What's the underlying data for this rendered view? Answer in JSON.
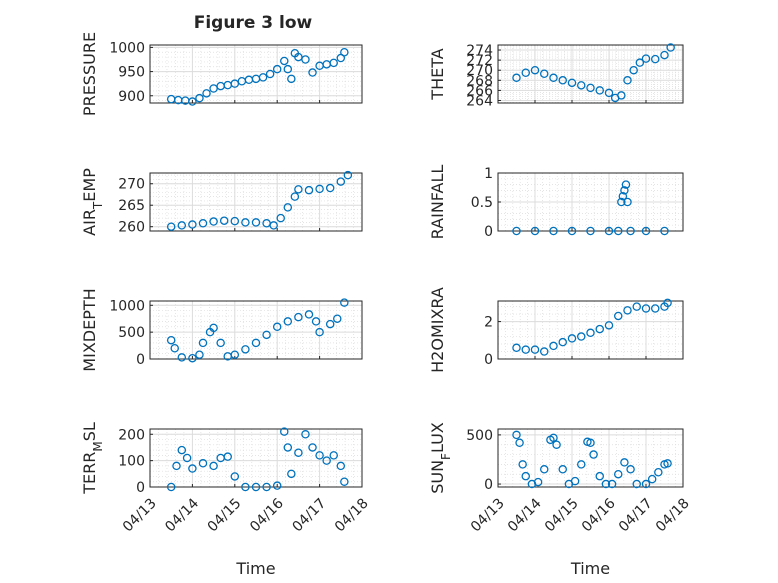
{
  "figure": {
    "title": "Figure 3 low"
  },
  "colors": {
    "marker": "#0072BD",
    "grid": "#dcdcdc",
    "axis": "#262626"
  },
  "chart_data": [
    {
      "type": "scatter",
      "marker": "circle",
      "ylabel": "PRESSURE",
      "xlim": [
        "04/13",
        "04/18"
      ],
      "ylim": [
        885,
        1005
      ],
      "yticks": [
        900,
        950,
        1000
      ],
      "points": [
        [
          "04/13 12:00",
          893
        ],
        [
          "04/13 16:00",
          891
        ],
        [
          "04/13 20:00",
          890
        ],
        [
          "04/14 00:00",
          888
        ],
        [
          "04/14 04:00",
          895
        ],
        [
          "04/14 08:00",
          905
        ],
        [
          "04/14 12:00",
          915
        ],
        [
          "04/14 16:00",
          920
        ],
        [
          "04/14 20:00",
          922
        ],
        [
          "04/15 00:00",
          925
        ],
        [
          "04/15 04:00",
          930
        ],
        [
          "04/15 08:00",
          933
        ],
        [
          "04/15 12:00",
          935
        ],
        [
          "04/15 16:00",
          938
        ],
        [
          "04/15 20:00",
          945
        ],
        [
          "04/16 00:00",
          955
        ],
        [
          "04/16 04:00",
          972
        ],
        [
          "04/16 06:00",
          955
        ],
        [
          "04/16 08:00",
          935
        ],
        [
          "04/16 10:00",
          988
        ],
        [
          "04/16 12:00",
          980
        ],
        [
          "04/16 16:00",
          975
        ],
        [
          "04/16 20:00",
          948
        ],
        [
          "04/17 00:00",
          962
        ],
        [
          "04/17 04:00",
          965
        ],
        [
          "04/17 08:00",
          968
        ],
        [
          "04/17 12:00",
          978
        ],
        [
          "04/17 14:00",
          990
        ]
      ]
    },
    {
      "type": "scatter",
      "marker": "circle",
      "ylabel": "THETA",
      "xlim": [
        "04/13",
        "04/18"
      ],
      "ylim": [
        263.5,
        275
      ],
      "yticks": [
        264,
        266,
        268,
        270,
        272,
        274
      ],
      "points": [
        [
          "04/13 12:00",
          268.5
        ],
        [
          "04/13 18:00",
          269.5
        ],
        [
          "04/14 00:00",
          270.0
        ],
        [
          "04/14 06:00",
          269.3
        ],
        [
          "04/14 12:00",
          268.5
        ],
        [
          "04/14 18:00",
          268.0
        ],
        [
          "04/15 00:00",
          267.5
        ],
        [
          "04/15 06:00",
          267.0
        ],
        [
          "04/15 12:00",
          266.5
        ],
        [
          "04/15 18:00",
          266.0
        ],
        [
          "04/16 00:00",
          265.5
        ],
        [
          "04/16 04:00",
          264.5
        ],
        [
          "04/16 08:00",
          265.0
        ],
        [
          "04/16 12:00",
          268.0
        ],
        [
          "04/16 16:00",
          270.0
        ],
        [
          "04/16 20:00",
          271.5
        ],
        [
          "04/17 00:00",
          272.3
        ],
        [
          "04/17 06:00",
          272.2
        ],
        [
          "04/17 12:00",
          273.0
        ],
        [
          "04/17 16:00",
          274.5
        ]
      ]
    },
    {
      "type": "scatter",
      "marker": "circle",
      "ylabel": "AIR_TEMP",
      "xlim": [
        "04/13",
        "04/18"
      ],
      "ylim": [
        259,
        272.5
      ],
      "yticks": [
        260,
        265,
        270
      ],
      "points": [
        [
          "04/13 12:00",
          260.0
        ],
        [
          "04/13 18:00",
          260.3
        ],
        [
          "04/14 00:00",
          260.5
        ],
        [
          "04/14 06:00",
          260.8
        ],
        [
          "04/14 12:00",
          261.2
        ],
        [
          "04/14 18:00",
          261.4
        ],
        [
          "04/15 00:00",
          261.3
        ],
        [
          "04/15 06:00",
          261.0
        ],
        [
          "04/15 12:00",
          261.0
        ],
        [
          "04/15 18:00",
          260.8
        ],
        [
          "04/15 22:00",
          260.3
        ],
        [
          "04/16 02:00",
          262.0
        ],
        [
          "04/16 06:00",
          264.5
        ],
        [
          "04/16 10:00",
          267.0
        ],
        [
          "04/16 12:00",
          268.7
        ],
        [
          "04/16 18:00",
          268.5
        ],
        [
          "04/17 00:00",
          268.8
        ],
        [
          "04/17 06:00",
          269.0
        ],
        [
          "04/17 12:00",
          270.5
        ],
        [
          "04/17 16:00",
          272.0
        ]
      ]
    },
    {
      "type": "scatter",
      "marker": "circle",
      "ylabel": "RAINFALL",
      "xlim": [
        "04/13",
        "04/18"
      ],
      "ylim": [
        0,
        1
      ],
      "yticks": [
        0,
        0.5,
        1
      ],
      "points": [
        [
          "04/13 12:00",
          0
        ],
        [
          "04/14 00:00",
          0
        ],
        [
          "04/14 12:00",
          0
        ],
        [
          "04/15 00:00",
          0
        ],
        [
          "04/15 12:00",
          0
        ],
        [
          "04/16 00:00",
          0
        ],
        [
          "04/16 06:00",
          0
        ],
        [
          "04/16 08:00",
          0.5
        ],
        [
          "04/16 09:00",
          0.6
        ],
        [
          "04/16 10:00",
          0.7
        ],
        [
          "04/16 11:00",
          0.8
        ],
        [
          "04/16 12:00",
          0.5
        ],
        [
          "04/16 14:00",
          0
        ],
        [
          "04/17 00:00",
          0
        ],
        [
          "04/17 12:00",
          0
        ]
      ]
    },
    {
      "type": "scatter",
      "marker": "circle",
      "ylabel": "MIXDEPTH",
      "xlim": [
        "04/13",
        "04/18"
      ],
      "ylim": [
        0,
        1080
      ],
      "yticks": [
        0,
        500,
        1000
      ],
      "points": [
        [
          "04/13 12:00",
          350
        ],
        [
          "04/13 14:00",
          200
        ],
        [
          "04/13 18:00",
          30
        ],
        [
          "04/14 00:00",
          15
        ],
        [
          "04/14 04:00",
          80
        ],
        [
          "04/14 06:00",
          300
        ],
        [
          "04/14 10:00",
          500
        ],
        [
          "04/14 12:00",
          580
        ],
        [
          "04/14 16:00",
          300
        ],
        [
          "04/14 20:00",
          50
        ],
        [
          "04/15 00:00",
          80
        ],
        [
          "04/15 06:00",
          180
        ],
        [
          "04/15 12:00",
          300
        ],
        [
          "04/15 18:00",
          450
        ],
        [
          "04/16 00:00",
          600
        ],
        [
          "04/16 06:00",
          700
        ],
        [
          "04/16 12:00",
          780
        ],
        [
          "04/16 18:00",
          830
        ],
        [
          "04/16 22:00",
          700
        ],
        [
          "04/17 00:00",
          500
        ],
        [
          "04/17 06:00",
          650
        ],
        [
          "04/17 10:00",
          750
        ],
        [
          "04/17 14:00",
          1050
        ]
      ]
    },
    {
      "type": "scatter",
      "marker": "circle",
      "ylabel": "H2OMIXRA",
      "xlim": [
        "04/13",
        "04/18"
      ],
      "ylim": [
        0,
        3.1
      ],
      "yticks": [
        0,
        2
      ],
      "points": [
        [
          "04/13 12:00",
          0.6
        ],
        [
          "04/13 18:00",
          0.5
        ],
        [
          "04/14 00:00",
          0.5
        ],
        [
          "04/14 06:00",
          0.4
        ],
        [
          "04/14 12:00",
          0.7
        ],
        [
          "04/14 18:00",
          0.9
        ],
        [
          "04/15 00:00",
          1.1
        ],
        [
          "04/15 06:00",
          1.2
        ],
        [
          "04/15 12:00",
          1.4
        ],
        [
          "04/15 18:00",
          1.6
        ],
        [
          "04/16 00:00",
          1.8
        ],
        [
          "04/16 06:00",
          2.3
        ],
        [
          "04/16 12:00",
          2.6
        ],
        [
          "04/16 18:00",
          2.8
        ],
        [
          "04/17 00:00",
          2.7
        ],
        [
          "04/17 06:00",
          2.7
        ],
        [
          "04/17 12:00",
          2.8
        ],
        [
          "04/17 14:00",
          3.0
        ]
      ]
    },
    {
      "type": "scatter",
      "marker": "circle",
      "ylabel": "TERR_MSL",
      "xlim": [
        "04/13",
        "04/18"
      ],
      "ylim": [
        0,
        220
      ],
      "yticks": [
        0,
        100,
        200
      ],
      "points": [
        [
          "04/13 12:00",
          0
        ],
        [
          "04/13 15:00",
          80
        ],
        [
          "04/13 18:00",
          140
        ],
        [
          "04/13 21:00",
          110
        ],
        [
          "04/14 00:00",
          70
        ],
        [
          "04/14 06:00",
          90
        ],
        [
          "04/14 12:00",
          80
        ],
        [
          "04/14 16:00",
          110
        ],
        [
          "04/14 20:00",
          115
        ],
        [
          "04/15 00:00",
          40
        ],
        [
          "04/15 06:00",
          0
        ],
        [
          "04/15 12:00",
          0
        ],
        [
          "04/15 18:00",
          0
        ],
        [
          "04/16 00:00",
          5
        ],
        [
          "04/16 04:00",
          210
        ],
        [
          "04/16 06:00",
          150
        ],
        [
          "04/16 08:00",
          50
        ],
        [
          "04/16 12:00",
          130
        ],
        [
          "04/16 16:00",
          200
        ],
        [
          "04/16 20:00",
          150
        ],
        [
          "04/17 00:00",
          120
        ],
        [
          "04/17 04:00",
          100
        ],
        [
          "04/17 08:00",
          120
        ],
        [
          "04/17 12:00",
          80
        ],
        [
          "04/17 14:00",
          20
        ]
      ]
    },
    {
      "type": "scatter",
      "marker": "circle",
      "ylabel": "SUN_FLUX",
      "xlim": [
        "04/13",
        "04/18"
      ],
      "ylim": [
        -30,
        560
      ],
      "yticks": [
        0,
        500
      ],
      "xticklabels": [
        "04/13",
        "04/14",
        "04/15",
        "04/16",
        "04/17",
        "04/18"
      ],
      "xlabel": "Time",
      "points": [
        [
          "04/13 12:00",
          500
        ],
        [
          "04/13 14:00",
          420
        ],
        [
          "04/13 16:00",
          200
        ],
        [
          "04/13 18:00",
          80
        ],
        [
          "04/13 22:00",
          0
        ],
        [
          "04/14 02:00",
          20
        ],
        [
          "04/14 06:00",
          150
        ],
        [
          "04/14 10:00",
          450
        ],
        [
          "04/14 12:00",
          470
        ],
        [
          "04/14 14:00",
          400
        ],
        [
          "04/14 18:00",
          150
        ],
        [
          "04/14 22:00",
          0
        ],
        [
          "04/15 02:00",
          30
        ],
        [
          "04/15 06:00",
          200
        ],
        [
          "04/15 10:00",
          430
        ],
        [
          "04/15 12:00",
          420
        ],
        [
          "04/15 14:00",
          300
        ],
        [
          "04/15 18:00",
          80
        ],
        [
          "04/15 22:00",
          0
        ],
        [
          "04/16 02:00",
          0
        ],
        [
          "04/16 06:00",
          100
        ],
        [
          "04/16 10:00",
          220
        ],
        [
          "04/16 14:00",
          150
        ],
        [
          "04/16 18:00",
          0
        ],
        [
          "04/17 00:00",
          0
        ],
        [
          "04/17 04:00",
          50
        ],
        [
          "04/17 08:00",
          120
        ],
        [
          "04/17 12:00",
          200
        ],
        [
          "04/17 14:00",
          210
        ]
      ]
    }
  ],
  "shared_x": {
    "ticklabels": [
      "04/13",
      "04/14",
      "04/15",
      "04/16",
      "04/17",
      "04/18"
    ],
    "xlabel": "Time"
  }
}
